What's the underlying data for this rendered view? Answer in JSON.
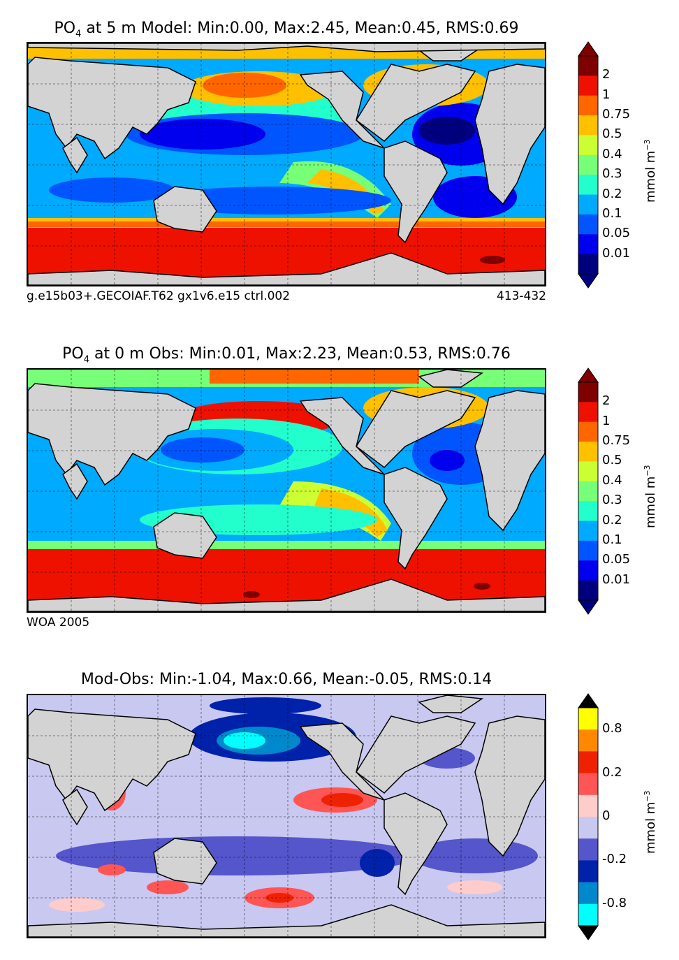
{
  "panels": [
    {
      "id": "model",
      "title_pre": "PO",
      "title_sub": "4",
      "title_post": "  at 5 m Model: Min:0.00, Max:2.45, Mean:0.45, RMS:0.69",
      "foot_left": "g.e15b03+.GECOIAF.T62 gx1v6.e15 ctrl.002",
      "foot_right": "413-432",
      "unit": "mmol m",
      "unit_sup": "−3",
      "colorbar": {
        "top_arrow": "#7f0000",
        "bottom_arrow": "#00007f",
        "colors": [
          "#7f0000",
          "#ee1100",
          "#ff6600",
          "#ffc000",
          "#ccff33",
          "#77ff77",
          "#22ffcc",
          "#00aaff",
          "#0055ff",
          "#0000ee",
          "#00007f"
        ],
        "labels": [
          "2",
          "1",
          "0.75",
          "0.5",
          "0.4",
          "0.3",
          "0.2",
          "0.1",
          "0.05",
          "0.01"
        ]
      },
      "map_colors": {
        "deep": "#0000ee",
        "low": "#0055ff",
        "mid": "#00aaff",
        "midhi": "#22ffcc",
        "green": "#77ff77",
        "yellow": "#ccff33",
        "orange": "#ffc000",
        "dorange": "#ff6600",
        "red": "#ee1100",
        "dred": "#7f0000"
      }
    },
    {
      "id": "obs",
      "title_pre": "PO",
      "title_sub": "4",
      "title_post": "  at 0 m Obs: Min:0.01, Max:2.23, Mean:0.53, RMS:0.76",
      "foot_left": "WOA 2005",
      "foot_right": "",
      "unit": "mmol m",
      "unit_sup": "−3",
      "colorbar": {
        "top_arrow": "#7f0000",
        "bottom_arrow": "#00007f",
        "colors": [
          "#7f0000",
          "#ee1100",
          "#ff6600",
          "#ffc000",
          "#ccff33",
          "#77ff77",
          "#22ffcc",
          "#00aaff",
          "#0055ff",
          "#0000ee",
          "#00007f"
        ],
        "labels": [
          "2",
          "1",
          "0.75",
          "0.5",
          "0.4",
          "0.3",
          "0.2",
          "0.1",
          "0.05",
          "0.01"
        ]
      }
    },
    {
      "id": "diff",
      "title_pre": "",
      "title_sub": "",
      "title_post": "Mod-Obs: Min:-1.04, Max:0.66, Mean:-0.05, RMS:0.14",
      "foot_left": "",
      "foot_right": "",
      "unit": "mmol m",
      "unit_sup": "−3",
      "colorbar": {
        "top_arrow": "#000000",
        "bottom_arrow": "#000000",
        "colors": [
          "#ffff00",
          "#ff8800",
          "#ee2200",
          "#ff5555",
          "#ffcccc",
          "#c8c8f0",
          "#5555cc",
          "#0022aa",
          "#0088cc",
          "#00ffff"
        ],
        "labels": [
          "0.8",
          "0.2",
          "0",
          "-0.2",
          "-0.8"
        ]
      }
    }
  ],
  "land_color": "#d3d3d3"
}
